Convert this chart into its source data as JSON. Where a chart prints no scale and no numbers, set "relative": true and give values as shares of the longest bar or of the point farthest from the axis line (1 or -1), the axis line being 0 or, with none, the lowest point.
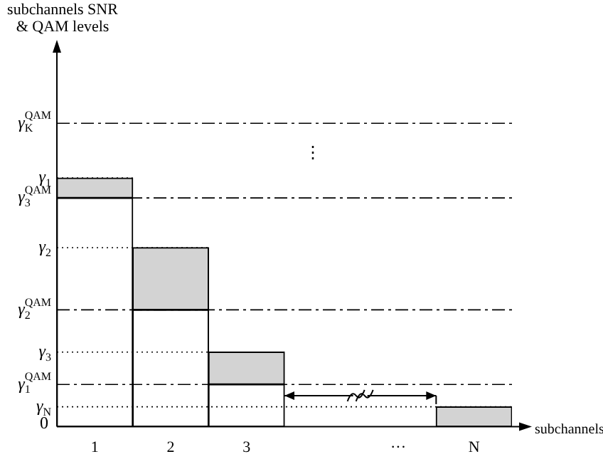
{
  "chart_data": {
    "type": "bar",
    "relative": true,
    "stacked": true,
    "xlabel": "subchannels",
    "categories": [
      "1",
      "2",
      "3",
      null,
      "···",
      "N"
    ],
    "series": [
      {
        "color": "#ffffff",
        "values": [
          0.92,
          0.47,
          0.17,
          null,
          null,
          0
        ]
      },
      {
        "color": "#d3d3d3",
        "values": [
          0.08,
          0.25,
          0.13,
          null,
          null,
          0.08
        ]
      }
    ],
    "ref_lines": [
      {
        "axis": "y",
        "value": 1.22,
        "label": "γ$_{K}$$^{QAM}$",
        "line_style": "dashed"
      },
      {
        "axis": "y",
        "value": 0.92,
        "label": "γ$_{3}$$^{QAM}$",
        "line_style": "dashed"
      },
      {
        "axis": "y",
        "value": 0.47,
        "label": "γ$_{2}$$^{QAM}$",
        "line_style": "dashed"
      },
      {
        "axis": "y",
        "value": 0.17,
        "label": "γ$_{1}$$^{QAM}$",
        "line_style": "dashed"
      },
      {
        "axis": "y",
        "value": 1,
        "label": "γ$_{1}$",
        "line_style": "dotted"
      },
      {
        "axis": "y",
        "value": 0.72,
        "label": "γ$_{2}$",
        "line_style": "dotted"
      },
      {
        "axis": "y",
        "value": 0.3,
        "label": "γ$_{3}$",
        "line_style": "dotted"
      },
      {
        "axis": "y",
        "value": 0.08,
        "label": "γ$_{N}$",
        "line_style": "dotted"
      }
    ],
    "annotations": [
      "subchannels SNR\n& QAM levels",
      "0",
      "⋮"
    ],
    "grid": false,
    "legend": false
  }
}
